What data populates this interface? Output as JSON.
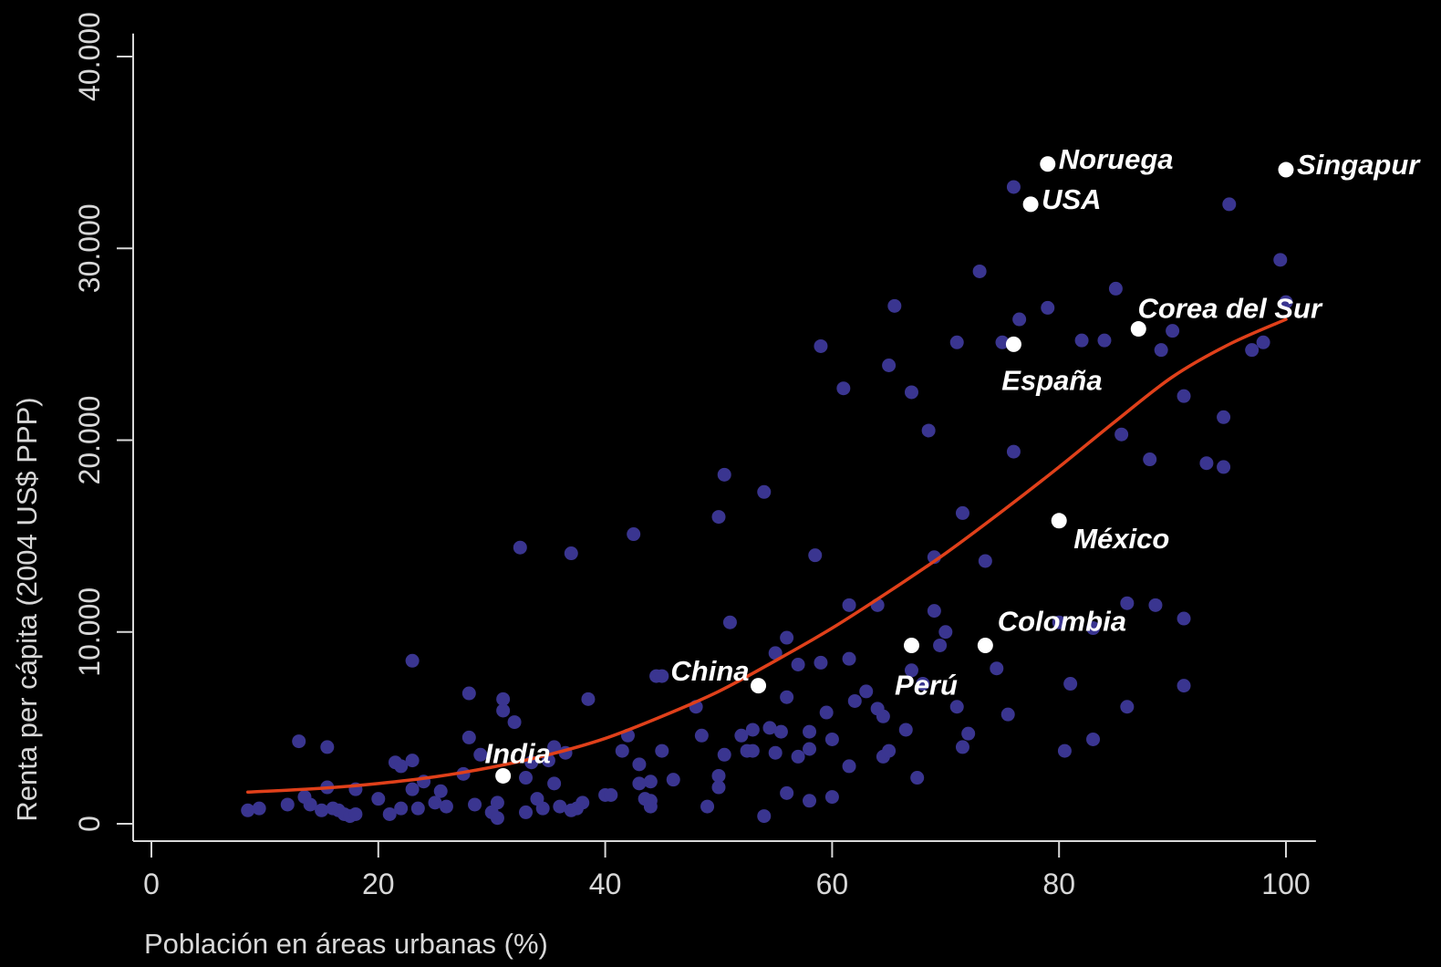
{
  "chart_data": {
    "type": "scatter",
    "xlabel": "Población en áreas urbanas (%)",
    "ylabel": "Renta per cápita (2004 US$ PPP)",
    "xlim": [
      -1,
      102
    ],
    "ylim": [
      -1200,
      41200
    ],
    "xticks": [
      {
        "value": 0,
        "label": "0"
      },
      {
        "value": 20,
        "label": "20"
      },
      {
        "value": 40,
        "label": "40"
      },
      {
        "value": 60,
        "label": "60"
      },
      {
        "value": 80,
        "label": "80"
      },
      {
        "value": 100,
        "label": "100"
      }
    ],
    "yticks": [
      {
        "value": 0,
        "label": "0"
      },
      {
        "value": 10000,
        "label": "10.000"
      },
      {
        "value": 20000,
        "label": "20.000"
      },
      {
        "value": 30000,
        "label": "30.000"
      },
      {
        "value": 40000,
        "label": "40.000"
      }
    ],
    "grid": false,
    "colors": {
      "background": "#000000",
      "points": "#3a3590",
      "highlight": "#ffffff",
      "trend": "#e0401a",
      "axis": "#d8d8d8"
    },
    "series": [
      {
        "kind": "countries",
        "points": [
          [
            8.5,
            700
          ],
          [
            9.5,
            800
          ],
          [
            12,
            1000
          ],
          [
            13,
            4300
          ],
          [
            13.5,
            1400
          ],
          [
            14,
            1000
          ],
          [
            15,
            700
          ],
          [
            15.5,
            1900
          ],
          [
            15.5,
            4000
          ],
          [
            16,
            800
          ],
          [
            16.5,
            700
          ],
          [
            17,
            500
          ],
          [
            17.5,
            400
          ],
          [
            18,
            1800
          ],
          [
            18,
            500
          ],
          [
            20,
            1300
          ],
          [
            21,
            500
          ],
          [
            21.5,
            3200
          ],
          [
            22,
            800
          ],
          [
            22,
            3000
          ],
          [
            23,
            1800
          ],
          [
            23,
            3300
          ],
          [
            23.5,
            800
          ],
          [
            23,
            8500
          ],
          [
            24,
            2200
          ],
          [
            25,
            1100
          ],
          [
            25.5,
            1700
          ],
          [
            26,
            900
          ],
          [
            27.5,
            2600
          ],
          [
            28,
            6800
          ],
          [
            28.5,
            1000
          ],
          [
            28,
            4500
          ],
          [
            29,
            3600
          ],
          [
            30,
            600
          ],
          [
            30.5,
            300
          ],
          [
            30.5,
            1100
          ],
          [
            31,
            5900
          ],
          [
            31,
            6500
          ],
          [
            32,
            5300
          ],
          [
            32.5,
            14400
          ],
          [
            33,
            2400
          ],
          [
            33,
            600
          ],
          [
            33.5,
            3200
          ],
          [
            34,
            1300
          ],
          [
            34.5,
            800
          ],
          [
            35,
            3300
          ],
          [
            35.5,
            2100
          ],
          [
            35.5,
            4000
          ],
          [
            36,
            900
          ],
          [
            36.5,
            3700
          ],
          [
            37,
            14100
          ],
          [
            37,
            700
          ],
          [
            37.5,
            800
          ],
          [
            38,
            1100
          ],
          [
            38.5,
            6500
          ],
          [
            40,
            1500
          ],
          [
            40.5,
            1500
          ],
          [
            41.5,
            3800
          ],
          [
            42,
            4600
          ],
          [
            42.5,
            15100
          ],
          [
            43,
            3100
          ],
          [
            43,
            2100
          ],
          [
            43.5,
            1300
          ],
          [
            44,
            900
          ],
          [
            44,
            1200
          ],
          [
            44,
            2200
          ],
          [
            44.5,
            7700
          ],
          [
            45,
            7700
          ],
          [
            45,
            3800
          ],
          [
            46,
            2300
          ],
          [
            48,
            6100
          ],
          [
            48.5,
            4600
          ],
          [
            49,
            900
          ],
          [
            50,
            2500
          ],
          [
            50,
            1900
          ],
          [
            50,
            16000
          ],
          [
            50.5,
            3600
          ],
          [
            50.5,
            18200
          ],
          [
            51,
            10500
          ],
          [
            52,
            4600
          ],
          [
            52.5,
            3800
          ],
          [
            53,
            4900
          ],
          [
            53,
            3800
          ],
          [
            54,
            400
          ],
          [
            54,
            17300
          ],
          [
            54.5,
            5000
          ],
          [
            55,
            3700
          ],
          [
            55,
            8900
          ],
          [
            55.5,
            4800
          ],
          [
            56,
            9700
          ],
          [
            56,
            6600
          ],
          [
            56,
            1600
          ],
          [
            57,
            3500
          ],
          [
            57,
            8300
          ],
          [
            58,
            1200
          ],
          [
            58,
            4800
          ],
          [
            58,
            3900
          ],
          [
            58.5,
            14000
          ],
          [
            59,
            8400
          ],
          [
            59,
            24900
          ],
          [
            59.5,
            5800
          ],
          [
            60,
            1400
          ],
          [
            60,
            4400
          ],
          [
            61,
            22700
          ],
          [
            61.5,
            8600
          ],
          [
            61.5,
            11400
          ],
          [
            61.5,
            3000
          ],
          [
            62,
            6400
          ],
          [
            63,
            6900
          ],
          [
            64,
            6000
          ],
          [
            64,
            11400
          ],
          [
            64.5,
            3500
          ],
          [
            64.5,
            5600
          ],
          [
            65,
            23900
          ],
          [
            65,
            3800
          ],
          [
            65.5,
            27000
          ],
          [
            66.5,
            4900
          ],
          [
            67,
            8000
          ],
          [
            67,
            22500
          ],
          [
            67.5,
            2400
          ],
          [
            68,
            7300
          ],
          [
            68.5,
            20500
          ],
          [
            69,
            11100
          ],
          [
            69,
            13900
          ],
          [
            69.5,
            9300
          ],
          [
            70,
            10000
          ],
          [
            71,
            25100
          ],
          [
            71,
            6100
          ],
          [
            71.5,
            4000
          ],
          [
            71.5,
            16200
          ],
          [
            72,
            4700
          ],
          [
            73,
            28800
          ],
          [
            73.5,
            13700
          ],
          [
            74.5,
            8100
          ],
          [
            75,
            25100
          ],
          [
            75.5,
            5700
          ],
          [
            76,
            33200
          ],
          [
            76,
            19400
          ],
          [
            76.5,
            26300
          ],
          [
            79,
            26900
          ],
          [
            80,
            10500
          ],
          [
            80.5,
            3800
          ],
          [
            81,
            7300
          ],
          [
            82,
            25200
          ],
          [
            83,
            10200
          ],
          [
            83,
            4400
          ],
          [
            84,
            25200
          ],
          [
            85,
            27900
          ],
          [
            85.5,
            20300
          ],
          [
            86,
            6100
          ],
          [
            86,
            11500
          ],
          [
            88,
            19000
          ],
          [
            88.5,
            11400
          ],
          [
            89,
            24700
          ],
          [
            90,
            25700
          ],
          [
            91,
            7200
          ],
          [
            91,
            10700
          ],
          [
            91,
            22300
          ],
          [
            93,
            18800
          ],
          [
            94.5,
            21200
          ],
          [
            94.5,
            18600
          ],
          [
            95,
            32300
          ],
          [
            97,
            24700
          ],
          [
            98,
            25100
          ],
          [
            99.5,
            29400
          ],
          [
            100,
            27200
          ]
        ]
      },
      {
        "kind": "highlighted",
        "points": [
          {
            "x": 79,
            "y": 34400,
            "label": "Noruega",
            "anchor": "right"
          },
          {
            "x": 77.5,
            "y": 32300,
            "label": "USA",
            "anchor": "right"
          },
          {
            "x": 100,
            "y": 34100,
            "label": "Singapur",
            "anchor": "right"
          },
          {
            "x": 87,
            "y": 25800,
            "label": "Corea del Sur",
            "anchor": "above"
          },
          {
            "x": 76,
            "y": 25000,
            "label": "España",
            "anchor": "below"
          },
          {
            "x": 80,
            "y": 15800,
            "label": "México",
            "anchor": "below-right"
          },
          {
            "x": 73.5,
            "y": 9300,
            "label": "Colombia",
            "anchor": "above"
          },
          {
            "x": 67,
            "y": 9300,
            "label": "Perú",
            "anchor": "below"
          },
          {
            "x": 53.5,
            "y": 7200,
            "label": "China",
            "anchor": "above-left"
          },
          {
            "x": 31,
            "y": 2500,
            "label": "India",
            "anchor": "above"
          }
        ]
      }
    ],
    "trend": {
      "points": [
        [
          8.5,
          1650
        ],
        [
          15,
          1850
        ],
        [
          20,
          2100
        ],
        [
          25,
          2450
        ],
        [
          30,
          2950
        ],
        [
          35,
          3600
        ],
        [
          40,
          4450
        ],
        [
          45,
          5600
        ],
        [
          50,
          6900
        ],
        [
          55,
          8500
        ],
        [
          60,
          10200
        ],
        [
          65,
          12100
        ],
        [
          70,
          14100
        ],
        [
          75,
          16300
        ],
        [
          80,
          18600
        ],
        [
          85,
          21000
        ],
        [
          90,
          23300
        ],
        [
          95,
          25000
        ],
        [
          100,
          26300
        ]
      ]
    }
  }
}
